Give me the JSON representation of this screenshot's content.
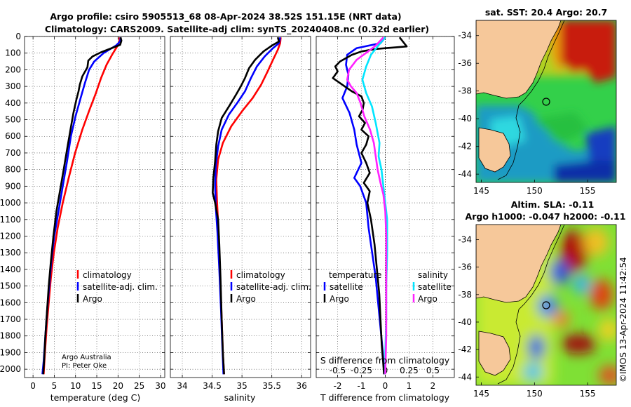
{
  "title": {
    "line1": "Argo profile: csiro 5905513_68 08-Apr-2024 38.52S 151.15E (NRT data)",
    "line2": "Climatology: CARS2009. Satellite-adj clim: synTS_20240408.nc (0.32d earlier)"
  },
  "credit": "©IMOS 13-Apr-2024 11:42:54",
  "colors": {
    "climatology": "#ff0000",
    "satellite_adj": "#0000ff",
    "argo": "#000000",
    "t_sat": "#00e5ff",
    "t_argo": "#ff22ff"
  },
  "chart_data": [
    {
      "type": "line",
      "id": "temperature",
      "xlabel": "temperature (deg C)",
      "ylabel": "",
      "xlim": [
        -2,
        31
      ],
      "ylim": [
        2050,
        0
      ],
      "xticks": [
        0,
        5,
        10,
        15,
        20,
        25,
        30
      ],
      "yticks": [
        0,
        100,
        200,
        300,
        400,
        500,
        600,
        700,
        800,
        900,
        1000,
        1100,
        1200,
        1300,
        1400,
        1500,
        1600,
        1700,
        1800,
        1900,
        2000
      ],
      "grid": true,
      "legend": [
        "climatology",
        "satellite-adj. clim.",
        "Argo"
      ],
      "series": [
        {
          "name": "climatology",
          "color": "#ff0000",
          "points": [
            [
              20.3,
              5
            ],
            [
              20.3,
              30
            ],
            [
              19.8,
              60
            ],
            [
              18.6,
              110
            ],
            [
              17.3,
              170
            ],
            [
              16.0,
              250
            ],
            [
              14.8,
              340
            ],
            [
              13.3,
              440
            ],
            [
              11.6,
              560
            ],
            [
              9.9,
              700
            ],
            [
              8.4,
              850
            ],
            [
              7.0,
              1000
            ],
            [
              5.8,
              1150
            ],
            [
              4.9,
              1300
            ],
            [
              4.2,
              1450
            ],
            [
              3.7,
              1600
            ],
            [
              3.2,
              1750
            ],
            [
              2.8,
              1900
            ],
            [
              2.5,
              2030
            ]
          ]
        },
        {
          "name": "satellite-adj. clim.",
          "color": "#0000ff",
          "points": [
            [
              20.6,
              5
            ],
            [
              20.5,
              30
            ],
            [
              19.5,
              55
            ],
            [
              16.6,
              100
            ],
            [
              14.4,
              150
            ],
            [
              13.2,
              200
            ],
            [
              12.2,
              280
            ],
            [
              11.2,
              370
            ],
            [
              10.0,
              480
            ],
            [
              8.9,
              600
            ],
            [
              8.0,
              750
            ],
            [
              7.0,
              900
            ],
            [
              6.0,
              1050
            ],
            [
              5.0,
              1200
            ],
            [
              4.3,
              1350
            ],
            [
              3.8,
              1500
            ],
            [
              3.3,
              1650
            ],
            [
              2.9,
              1800
            ],
            [
              2.5,
              1950
            ],
            [
              2.2,
              2030
            ]
          ]
        },
        {
          "name": "Argo",
          "color": "#000000",
          "points": [
            [
              20.6,
              5
            ],
            [
              20.8,
              25
            ],
            [
              20.5,
              50
            ],
            [
              18.5,
              70
            ],
            [
              16.0,
              95
            ],
            [
              14.0,
              120
            ],
            [
              13.0,
              145
            ],
            [
              12.8,
              185
            ],
            [
              11.6,
              240
            ],
            [
              11.0,
              290
            ],
            [
              10.7,
              330
            ],
            [
              10.2,
              380
            ],
            [
              9.5,
              460
            ],
            [
              8.8,
              560
            ],
            [
              8.0,
              680
            ],
            [
              7.2,
              800
            ],
            [
              6.4,
              920
            ],
            [
              5.5,
              1050
            ],
            [
              4.8,
              1200
            ],
            [
              4.2,
              1350
            ],
            [
              3.7,
              1500
            ],
            [
              3.3,
              1650
            ],
            [
              2.9,
              1800
            ],
            [
              2.6,
              1950
            ],
            [
              2.4,
              2030
            ]
          ]
        }
      ]
    },
    {
      "type": "line",
      "id": "salinity",
      "xlabel": "salinity",
      "xlim": [
        33.8,
        36.15
      ],
      "ylim": [
        2050,
        0
      ],
      "xticks": [
        34,
        34.5,
        35,
        35.5,
        36
      ],
      "grid": true,
      "legend": [
        "climatology",
        "satellite-adj. clim.",
        "Argo"
      ],
      "series": [
        {
          "name": "climatology",
          "color": "#ff0000",
          "points": [
            [
              35.65,
              5
            ],
            [
              35.64,
              40
            ],
            [
              35.6,
              80
            ],
            [
              35.52,
              140
            ],
            [
              35.43,
              210
            ],
            [
              35.32,
              290
            ],
            [
              35.18,
              370
            ],
            [
              35.0,
              450
            ],
            [
              34.82,
              540
            ],
            [
              34.68,
              640
            ],
            [
              34.6,
              740
            ],
            [
              34.57,
              860
            ],
            [
              34.58,
              980
            ],
            [
              34.6,
              1120
            ],
            [
              34.62,
              1300
            ],
            [
              34.64,
              1500
            ],
            [
              34.66,
              1700
            ],
            [
              34.68,
              1900
            ],
            [
              34.7,
              2030
            ]
          ]
        },
        {
          "name": "satellite-adj. clim.",
          "color": "#0000ff",
          "points": [
            [
              35.64,
              5
            ],
            [
              35.62,
              40
            ],
            [
              35.52,
              70
            ],
            [
              35.38,
              120
            ],
            [
              35.25,
              180
            ],
            [
              35.15,
              250
            ],
            [
              35.05,
              330
            ],
            [
              34.92,
              400
            ],
            [
              34.78,
              470
            ],
            [
              34.66,
              560
            ],
            [
              34.6,
              660
            ],
            [
              34.56,
              780
            ],
            [
              34.55,
              900
            ],
            [
              34.56,
              1020
            ],
            [
              34.59,
              1180
            ],
            [
              34.62,
              1400
            ],
            [
              34.65,
              1650
            ],
            [
              34.67,
              1850
            ],
            [
              34.69,
              2030
            ]
          ]
        },
        {
          "name": "Argo",
          "color": "#000000",
          "points": [
            [
              35.6,
              5
            ],
            [
              35.62,
              30
            ],
            [
              35.5,
              55
            ],
            [
              35.36,
              90
            ],
            [
              35.22,
              140
            ],
            [
              35.12,
              190
            ],
            [
              35.05,
              250
            ],
            [
              34.98,
              300
            ],
            [
              34.9,
              350
            ],
            [
              34.8,
              410
            ],
            [
              34.66,
              490
            ],
            [
              34.6,
              570
            ],
            [
              34.57,
              650
            ],
            [
              34.55,
              750
            ],
            [
              34.52,
              850
            ],
            [
              34.51,
              940
            ],
            [
              34.55,
              1000
            ],
            [
              34.6,
              1100
            ],
            [
              34.62,
              1250
            ],
            [
              34.64,
              1450
            ],
            [
              34.66,
              1700
            ],
            [
              34.68,
              1900
            ],
            [
              34.7,
              2030
            ]
          ]
        }
      ]
    },
    {
      "type": "line",
      "id": "difference",
      "xlabel": "T difference from climatology",
      "x2label": "S difference from climatology",
      "xlim": [
        -2.9,
        2.9
      ],
      "ylim": [
        2050,
        0
      ],
      "xticks": [
        -2,
        -1,
        0,
        1,
        2
      ],
      "xtick_labels": [
        "-2",
        "-1",
        "0",
        "1",
        "2"
      ],
      "x2ticks": [
        -0.5,
        -0.25,
        0,
        0.25,
        0.5
      ],
      "x2tick_labels": [
        "-0.5",
        "-0.25",
        "0",
        "0.25",
        "0.5"
      ],
      "x2lim": [
        -0.725,
        0.725
      ],
      "grid": true,
      "legend_t": {
        "heading": "temperature",
        "items": [
          "satellite",
          "Argo"
        ]
      },
      "legend_s": {
        "heading": "salinity",
        "items": [
          "satellite",
          "Argo"
        ]
      },
      "series": [
        {
          "name": "T satellite",
          "axis": "T",
          "color": "#0000ff",
          "points": [
            [
              0,
              5
            ],
            [
              -0.2,
              40
            ],
            [
              -1.2,
              70
            ],
            [
              -1.6,
              110
            ],
            [
              -1.65,
              170
            ],
            [
              -1.55,
              230
            ],
            [
              -1.6,
              300
            ],
            [
              -1.8,
              370
            ],
            [
              -1.5,
              460
            ],
            [
              -1.3,
              560
            ],
            [
              -1.2,
              650
            ],
            [
              -1.0,
              760
            ],
            [
              -1.3,
              850
            ],
            [
              -1.05,
              900
            ],
            [
              -0.8,
              1000
            ],
            [
              -0.7,
              1150
            ],
            [
              -0.55,
              1300
            ],
            [
              -0.4,
              1450
            ],
            [
              -0.3,
              1600
            ],
            [
              -0.2,
              1750
            ],
            [
              -0.1,
              1900
            ],
            [
              -0.05,
              2030
            ]
          ]
        },
        {
          "name": "T Argo",
          "axis": "T",
          "color": "#000000",
          "points": [
            [
              0.6,
              5
            ],
            [
              0.9,
              60
            ],
            [
              -0.4,
              75
            ],
            [
              -1.0,
              90
            ],
            [
              -1.4,
              110
            ],
            [
              -1.9,
              150
            ],
            [
              -2.1,
              180
            ],
            [
              -2.0,
              210
            ],
            [
              -2.2,
              250
            ],
            [
              -1.8,
              290
            ],
            [
              -1.4,
              330
            ],
            [
              -1.0,
              360
            ],
            [
              -0.9,
              400
            ],
            [
              -0.95,
              440
            ],
            [
              -1.1,
              480
            ],
            [
              -0.85,
              520
            ],
            [
              -1.0,
              560
            ],
            [
              -0.7,
              600
            ],
            [
              -0.8,
              650
            ],
            [
              -1.0,
              700
            ],
            [
              -0.8,
              760
            ],
            [
              -0.65,
              820
            ],
            [
              -0.9,
              880
            ],
            [
              -0.65,
              930
            ],
            [
              -0.75,
              1000
            ],
            [
              -0.6,
              1100
            ],
            [
              -0.45,
              1250
            ],
            [
              -0.35,
              1400
            ],
            [
              -0.25,
              1550
            ],
            [
              -0.2,
              1700
            ],
            [
              -0.15,
              1850
            ],
            [
              -0.05,
              2030
            ]
          ]
        },
        {
          "name": "S satellite",
          "axis": "S",
          "color": "#00e5ff",
          "points": [
            [
              0,
              5
            ],
            [
              -0.08,
              60
            ],
            [
              -0.15,
              110
            ],
            [
              -0.2,
              180
            ],
            [
              -0.24,
              260
            ],
            [
              -0.2,
              340
            ],
            [
              -0.14,
              420
            ],
            [
              -0.1,
              520
            ],
            [
              -0.06,
              640
            ],
            [
              -0.07,
              720
            ],
            [
              -0.04,
              800
            ],
            [
              -0.02,
              900
            ],
            [
              0.0,
              1000
            ],
            [
              0.02,
              1100
            ],
            [
              0.02,
              1300
            ],
            [
              0.01,
              1500
            ],
            [
              0.01,
              1700
            ],
            [
              0.0,
              1900
            ],
            [
              0.0,
              2030
            ]
          ]
        },
        {
          "name": "S Argo",
          "axis": "S",
          "color": "#ff22ff",
          "points": [
            [
              -0.02,
              5
            ],
            [
              -0.1,
              55
            ],
            [
              -0.18,
              90
            ],
            [
              -0.3,
              140
            ],
            [
              -0.38,
              200
            ],
            [
              -0.4,
              260
            ],
            [
              -0.36,
              300
            ],
            [
              -0.3,
              340
            ],
            [
              -0.26,
              400
            ],
            [
              -0.22,
              480
            ],
            [
              -0.16,
              560
            ],
            [
              -0.12,
              640
            ],
            [
              -0.1,
              720
            ],
            [
              -0.08,
              800
            ],
            [
              -0.05,
              880
            ],
            [
              -0.02,
              950
            ],
            [
              0.0,
              1050
            ],
            [
              0.01,
              1200
            ],
            [
              0.01,
              1400
            ],
            [
              0.01,
              1600
            ],
            [
              0.01,
              1800
            ],
            [
              0.0,
              2030
            ]
          ]
        }
      ]
    },
    {
      "type": "heatmap",
      "id": "sst_map",
      "title": "sat. SST: 20.4 Argo: 20.7",
      "xlim": [
        144.5,
        157.7
      ],
      "ylim": [
        -44.6,
        -32.9
      ],
      "xticks": [
        145,
        150,
        155
      ],
      "yticks": [
        -34,
        -36,
        -38,
        -40,
        -42,
        -44
      ],
      "marker": {
        "lon": 151.15,
        "lat": -38.52
      }
    },
    {
      "type": "heatmap",
      "id": "sla_map",
      "title1": "Altim. SLA: -0.11",
      "title2": "Argo h1000: -0.047 h2000: -0.11",
      "xlim": [
        144.5,
        157.7
      ],
      "ylim": [
        -44.6,
        -32.9
      ],
      "xticks": [
        145,
        150,
        155
      ],
      "yticks": [
        -34,
        -36,
        -38,
        -40,
        -42,
        -44
      ],
      "marker": {
        "lon": 151.15,
        "lat": -38.52
      }
    }
  ],
  "notes": {
    "line1": "Argo Australia",
    "line2": "PI: Peter Oke"
  }
}
